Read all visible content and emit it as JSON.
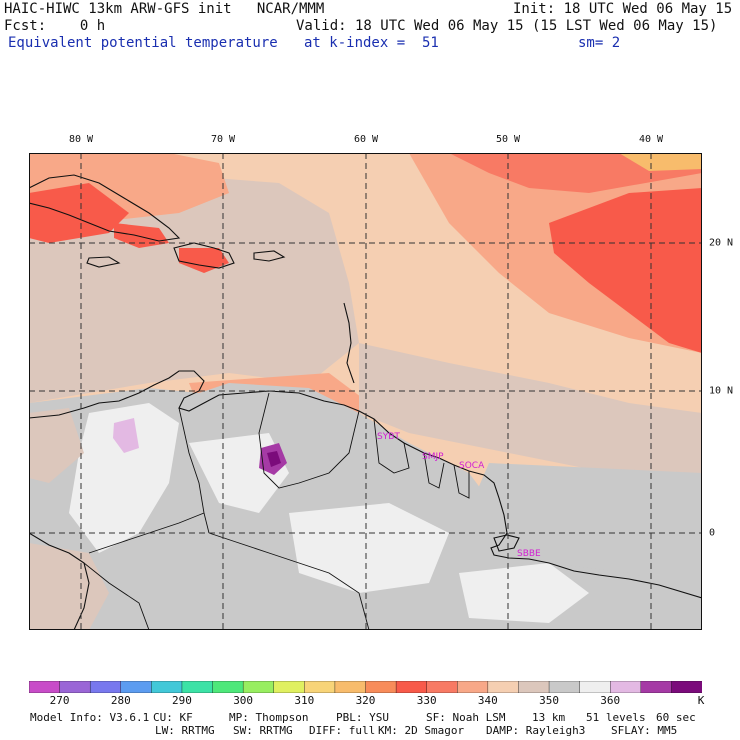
{
  "header": {
    "model_line": "HAIC-HIWC 13km ARW-GFS init   NCAR/MMM",
    "init_line": "Init: 18 UTC Wed 06 May 15",
    "fcst_line": "Fcst:    0 h",
    "valid_line": "Valid: 18 UTC Wed 06 May 15 (15 LST Wed 06 May 15)",
    "field_name": "Equivalent potential temperature",
    "k_index_label": "at k-index =  51",
    "smooth_label": "sm= 2"
  },
  "map": {
    "lon_labels": [
      "80 W",
      "70 W",
      "60 W",
      "50 W",
      "40 W"
    ],
    "lat_labels": [
      "20 N",
      "10 N",
      "0"
    ],
    "stations": [
      "SYBT",
      "SMJP",
      "SOCA",
      "SBBE"
    ]
  },
  "colorbar": {
    "colors": [
      "#c84cc8",
      "#9a66d6",
      "#7878ee",
      "#5c9cf0",
      "#42c8d8",
      "#3ce2a6",
      "#4ee87a",
      "#98ee60",
      "#e0f060",
      "#f8d478",
      "#f8bc6c",
      "#f88c5a",
      "#f85a4a",
      "#f87a64",
      "#f8a888",
      "#f5cfb2",
      "#dcc7bc",
      "#c9c9c9",
      "#efefef",
      "#e3b9e3",
      "#a53aa5",
      "#7b0b7b"
    ],
    "labels": [
      "270",
      "280",
      "290",
      "300",
      "310",
      "320",
      "330",
      "340",
      "350",
      "360"
    ],
    "unit": "K"
  },
  "model_info": {
    "line1": [
      "Model Info: V3.6.1",
      "CU: KF",
      "MP: Thompson",
      "PBL: YSU",
      "SF: Noah LSM",
      "13 km",
      "51 levels",
      "60 sec"
    ],
    "line2": [
      "LW: RRTMG",
      "SW: RRTMG",
      "DIFF: full",
      "KM: 2D Smagor",
      "DAMP: Rayleigh3",
      "SFLAY: MM5"
    ]
  }
}
